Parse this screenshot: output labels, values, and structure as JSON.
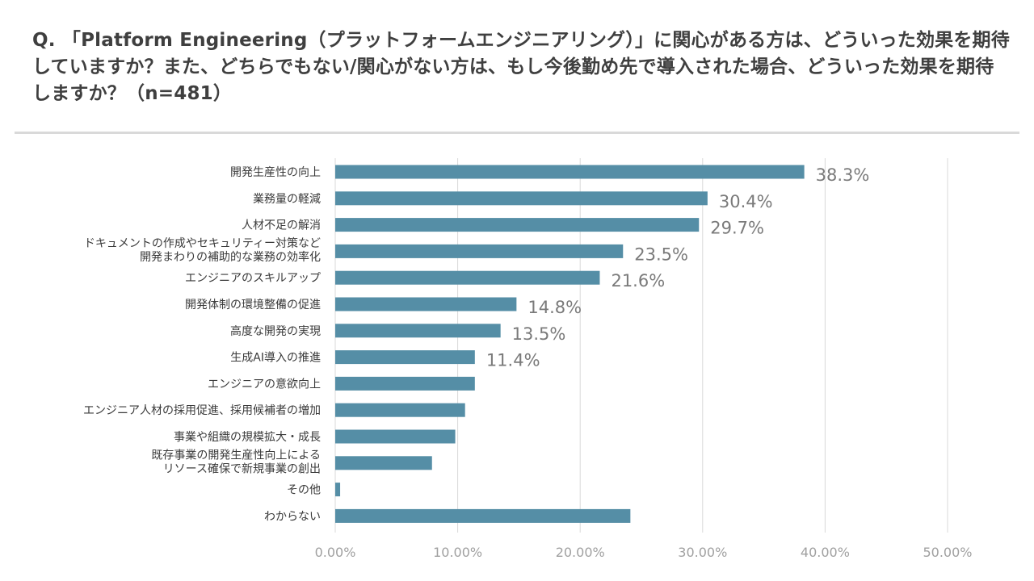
{
  "title": "Q. 「Platform Engineering（プラットフォームエンジニアリング）」に関心がある方は、どういった効果を期待していますか？また、どちらでもない/関心がない方は、もし今後勤め先で導入された場合、どういった効果を期待しますか？（n=481）",
  "colors": {
    "bar": "#558ea6",
    "grid": "#d9d9d9"
  },
  "chart_data": {
    "type": "bar",
    "orientation": "horizontal",
    "title": "Q. 「Platform Engineering（プラットフォームエンジニアリング）」に関心がある方は、どういった効果を期待していますか？また、どちらでもない/関心がない方は、もし今後勤め先で導入された場合、どういった効果を期待しますか？（n=481）",
    "xlabel": "",
    "ylabel": "",
    "xlim": [
      0,
      50
    ],
    "ticks": [
      "0.00%",
      "10.00%",
      "20.00%",
      "30.00%",
      "40.00%",
      "50.00%"
    ],
    "categories": [
      [
        "開発生産性の向上"
      ],
      [
        "業務量の軽減"
      ],
      [
        "人材不足の解消"
      ],
      [
        "ドキュメントの作成やセキュリティー対策など",
        "開発まわりの補助的な業務の効率化"
      ],
      [
        "エンジニアのスキルアップ"
      ],
      [
        "開発体制の環境整備の促進"
      ],
      [
        "高度な開発の実現"
      ],
      [
        "生成AI導入の推進"
      ],
      [
        "エンジニアの意欲向上"
      ],
      [
        "エンジニア人材の採用促進、採用候補者の増加"
      ],
      [
        "事業や組織の規模拡大・成長"
      ],
      [
        "既存事業の開発生産性向上による",
        "リソース確保で新規事業の創出"
      ],
      [
        "その他"
      ],
      [
        "わからない"
      ]
    ],
    "values": [
      38.3,
      30.4,
      29.7,
      23.5,
      21.6,
      14.8,
      13.5,
      11.4,
      11.4,
      10.6,
      9.8,
      7.9,
      0.4,
      24.1
    ],
    "data_labels": [
      "38.3%",
      "30.4%",
      "29.7%",
      "23.5%",
      "21.6%",
      "14.8%",
      "13.5%",
      "11.4%",
      null,
      null,
      null,
      null,
      null,
      null
    ],
    "grid": true,
    "legend": "none"
  }
}
